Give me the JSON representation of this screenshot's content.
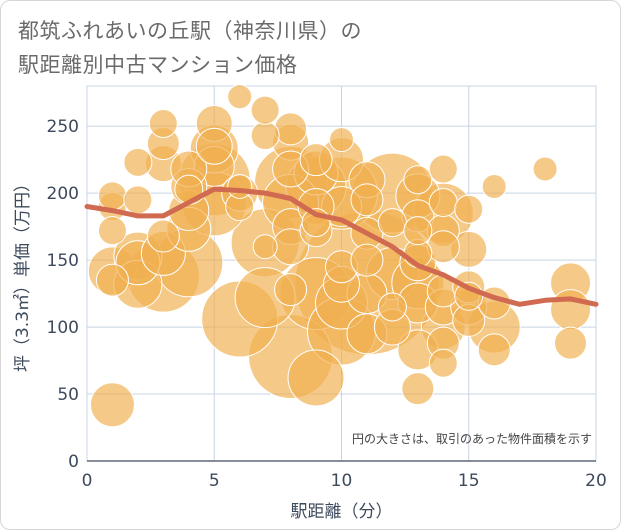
{
  "header": {
    "title_line1": "都筑ふれあいの丘駅（神奈川県）の",
    "title_line2": "駅距離別中古マンション価格"
  },
  "chart_data": {
    "type": "scatter",
    "xlabel": "駅距離（分）",
    "ylabel": "坪（3.3㎡）単価（万円）",
    "note": "円の大きさは、取引のあった物件面積を示す",
    "xlim": [
      0,
      20
    ],
    "ylim": [
      0,
      280
    ],
    "x_ticks": [
      0,
      5,
      10,
      15,
      20
    ],
    "y_ticks": [
      0,
      50,
      100,
      150,
      200,
      250
    ],
    "grid": true,
    "colors": {
      "bubble": "#f0b050",
      "bubble_stroke": "#ffffff",
      "trend": "#d06a50",
      "grid": "#c8d4e4",
      "axis": "#3d4a5c"
    },
    "points": [
      {
        "x": 1,
        "y": 42,
        "s": 22
      },
      {
        "x": 1,
        "y": 142,
        "s": 24
      },
      {
        "x": 1,
        "y": 135,
        "s": 16
      },
      {
        "x": 1,
        "y": 190,
        "s": 14
      },
      {
        "x": 1,
        "y": 198,
        "s": 14
      },
      {
        "x": 1,
        "y": 172,
        "s": 14
      },
      {
        "x": 2,
        "y": 153,
        "s": 24
      },
      {
        "x": 2,
        "y": 148,
        "s": 22
      },
      {
        "x": 2,
        "y": 132,
        "s": 24
      },
      {
        "x": 2,
        "y": 195,
        "s": 14
      },
      {
        "x": 2,
        "y": 223,
        "s": 14
      },
      {
        "x": 3,
        "y": 138,
        "s": 36
      },
      {
        "x": 3,
        "y": 155,
        "s": 22
      },
      {
        "x": 3,
        "y": 168,
        "s": 16
      },
      {
        "x": 3,
        "y": 222,
        "s": 18
      },
      {
        "x": 3,
        "y": 237,
        "s": 16
      },
      {
        "x": 3,
        "y": 252,
        "s": 14
      },
      {
        "x": 4,
        "y": 148,
        "s": 34
      },
      {
        "x": 4,
        "y": 173,
        "s": 22
      },
      {
        "x": 4,
        "y": 187,
        "s": 20
      },
      {
        "x": 4,
        "y": 205,
        "s": 18
      },
      {
        "x": 4,
        "y": 218,
        "s": 18
      },
      {
        "x": 4,
        "y": 203,
        "s": 14
      },
      {
        "x": 5,
        "y": 192,
        "s": 32
      },
      {
        "x": 5,
        "y": 210,
        "s": 36
      },
      {
        "x": 5,
        "y": 233,
        "s": 24
      },
      {
        "x": 5,
        "y": 220,
        "s": 20
      },
      {
        "x": 5,
        "y": 252,
        "s": 18
      },
      {
        "x": 5,
        "y": 235,
        "s": 18
      },
      {
        "x": 6,
        "y": 106,
        "s": 38
      },
      {
        "x": 6,
        "y": 200,
        "s": 18
      },
      {
        "x": 6,
        "y": 190,
        "s": 14
      },
      {
        "x": 6,
        "y": 205,
        "s": 12
      },
      {
        "x": 6,
        "y": 272,
        "s": 12
      },
      {
        "x": 7,
        "y": 163,
        "s": 34
      },
      {
        "x": 7,
        "y": 122,
        "s": 30
      },
      {
        "x": 7,
        "y": 243,
        "s": 14
      },
      {
        "x": 7,
        "y": 262,
        "s": 14
      },
      {
        "x": 7,
        "y": 160,
        "s": 12
      },
      {
        "x": 8,
        "y": 78,
        "s": 42
      },
      {
        "x": 8,
        "y": 208,
        "s": 36
      },
      {
        "x": 8,
        "y": 193,
        "s": 28
      },
      {
        "x": 8,
        "y": 175,
        "s": 18
      },
      {
        "x": 8,
        "y": 160,
        "s": 18
      },
      {
        "x": 8,
        "y": 128,
        "s": 16
      },
      {
        "x": 8,
        "y": 238,
        "s": 18
      },
      {
        "x": 8,
        "y": 248,
        "s": 16
      },
      {
        "x": 8,
        "y": 218,
        "s": 18
      },
      {
        "x": 9,
        "y": 125,
        "s": 36
      },
      {
        "x": 9,
        "y": 62,
        "s": 28
      },
      {
        "x": 9,
        "y": 205,
        "s": 30
      },
      {
        "x": 9,
        "y": 215,
        "s": 22
      },
      {
        "x": 9,
        "y": 190,
        "s": 18
      },
      {
        "x": 9,
        "y": 172,
        "s": 16
      },
      {
        "x": 9,
        "y": 225,
        "s": 16
      },
      {
        "x": 9,
        "y": 178,
        "s": 14
      },
      {
        "x": 10,
        "y": 97,
        "s": 34
      },
      {
        "x": 10,
        "y": 118,
        "s": 26
      },
      {
        "x": 10,
        "y": 200,
        "s": 36
      },
      {
        "x": 10,
        "y": 225,
        "s": 22
      },
      {
        "x": 10,
        "y": 190,
        "s": 20
      },
      {
        "x": 10,
        "y": 145,
        "s": 16
      },
      {
        "x": 10,
        "y": 132,
        "s": 18
      },
      {
        "x": 10,
        "y": 240,
        "s": 12
      },
      {
        "x": 11,
        "y": 133,
        "s": 72
      },
      {
        "x": 11,
        "y": 95,
        "s": 20
      },
      {
        "x": 11,
        "y": 125,
        "s": 20
      },
      {
        "x": 11,
        "y": 210,
        "s": 18
      },
      {
        "x": 11,
        "y": 195,
        "s": 16
      },
      {
        "x": 11,
        "y": 170,
        "s": 16
      },
      {
        "x": 11,
        "y": 150,
        "s": 16
      },
      {
        "x": 12,
        "y": 200,
        "s": 40
      },
      {
        "x": 12,
        "y": 140,
        "s": 26
      },
      {
        "x": 12,
        "y": 100,
        "s": 18
      },
      {
        "x": 12,
        "y": 178,
        "s": 14
      },
      {
        "x": 12,
        "y": 115,
        "s": 14
      },
      {
        "x": 13,
        "y": 133,
        "s": 26
      },
      {
        "x": 13,
        "y": 118,
        "s": 20
      },
      {
        "x": 13,
        "y": 83,
        "s": 20
      },
      {
        "x": 13,
        "y": 54,
        "s": 16
      },
      {
        "x": 13,
        "y": 198,
        "s": 22
      },
      {
        "x": 13,
        "y": 183,
        "s": 16
      },
      {
        "x": 13,
        "y": 210,
        "s": 14
      },
      {
        "x": 13,
        "y": 155,
        "s": 14
      },
      {
        "x": 13,
        "y": 148,
        "s": 18
      },
      {
        "x": 13,
        "y": 172,
        "s": 14
      },
      {
        "x": 14,
        "y": 185,
        "s": 30
      },
      {
        "x": 14,
        "y": 172,
        "s": 16
      },
      {
        "x": 14,
        "y": 160,
        "s": 16
      },
      {
        "x": 14,
        "y": 100,
        "s": 22
      },
      {
        "x": 14,
        "y": 115,
        "s": 18
      },
      {
        "x": 14,
        "y": 88,
        "s": 16
      },
      {
        "x": 14,
        "y": 73,
        "s": 14
      },
      {
        "x": 14,
        "y": 127,
        "s": 16
      },
      {
        "x": 14,
        "y": 218,
        "s": 14
      },
      {
        "x": 14,
        "y": 193,
        "s": 14
      },
      {
        "x": 15,
        "y": 158,
        "s": 18
      },
      {
        "x": 15,
        "y": 130,
        "s": 16
      },
      {
        "x": 15,
        "y": 115,
        "s": 18
      },
      {
        "x": 15,
        "y": 105,
        "s": 16
      },
      {
        "x": 15,
        "y": 123,
        "s": 14
      },
      {
        "x": 15,
        "y": 188,
        "s": 14
      },
      {
        "x": 16,
        "y": 100,
        "s": 26
      },
      {
        "x": 16,
        "y": 118,
        "s": 16
      },
      {
        "x": 16,
        "y": 83,
        "s": 16
      },
      {
        "x": 16,
        "y": 205,
        "s": 12
      },
      {
        "x": 18,
        "y": 218,
        "s": 12
      },
      {
        "x": 19,
        "y": 133,
        "s": 20
      },
      {
        "x": 19,
        "y": 113,
        "s": 20
      },
      {
        "x": 19,
        "y": 88,
        "s": 16
      }
    ],
    "trend": [
      {
        "x": 0,
        "y": 190
      },
      {
        "x": 1,
        "y": 187
      },
      {
        "x": 2,
        "y": 183
      },
      {
        "x": 3,
        "y": 183
      },
      {
        "x": 4,
        "y": 193
      },
      {
        "x": 5,
        "y": 203
      },
      {
        "x": 6,
        "y": 202
      },
      {
        "x": 7,
        "y": 200
      },
      {
        "x": 8,
        "y": 196
      },
      {
        "x": 9,
        "y": 184
      },
      {
        "x": 10,
        "y": 180
      },
      {
        "x": 11,
        "y": 170
      },
      {
        "x": 12,
        "y": 160
      },
      {
        "x": 13,
        "y": 146
      },
      {
        "x": 14,
        "y": 139
      },
      {
        "x": 15,
        "y": 129
      },
      {
        "x": 16,
        "y": 122
      },
      {
        "x": 17,
        "y": 117
      },
      {
        "x": 18,
        "y": 120
      },
      {
        "x": 19,
        "y": 121
      },
      {
        "x": 20,
        "y": 117
      }
    ]
  }
}
